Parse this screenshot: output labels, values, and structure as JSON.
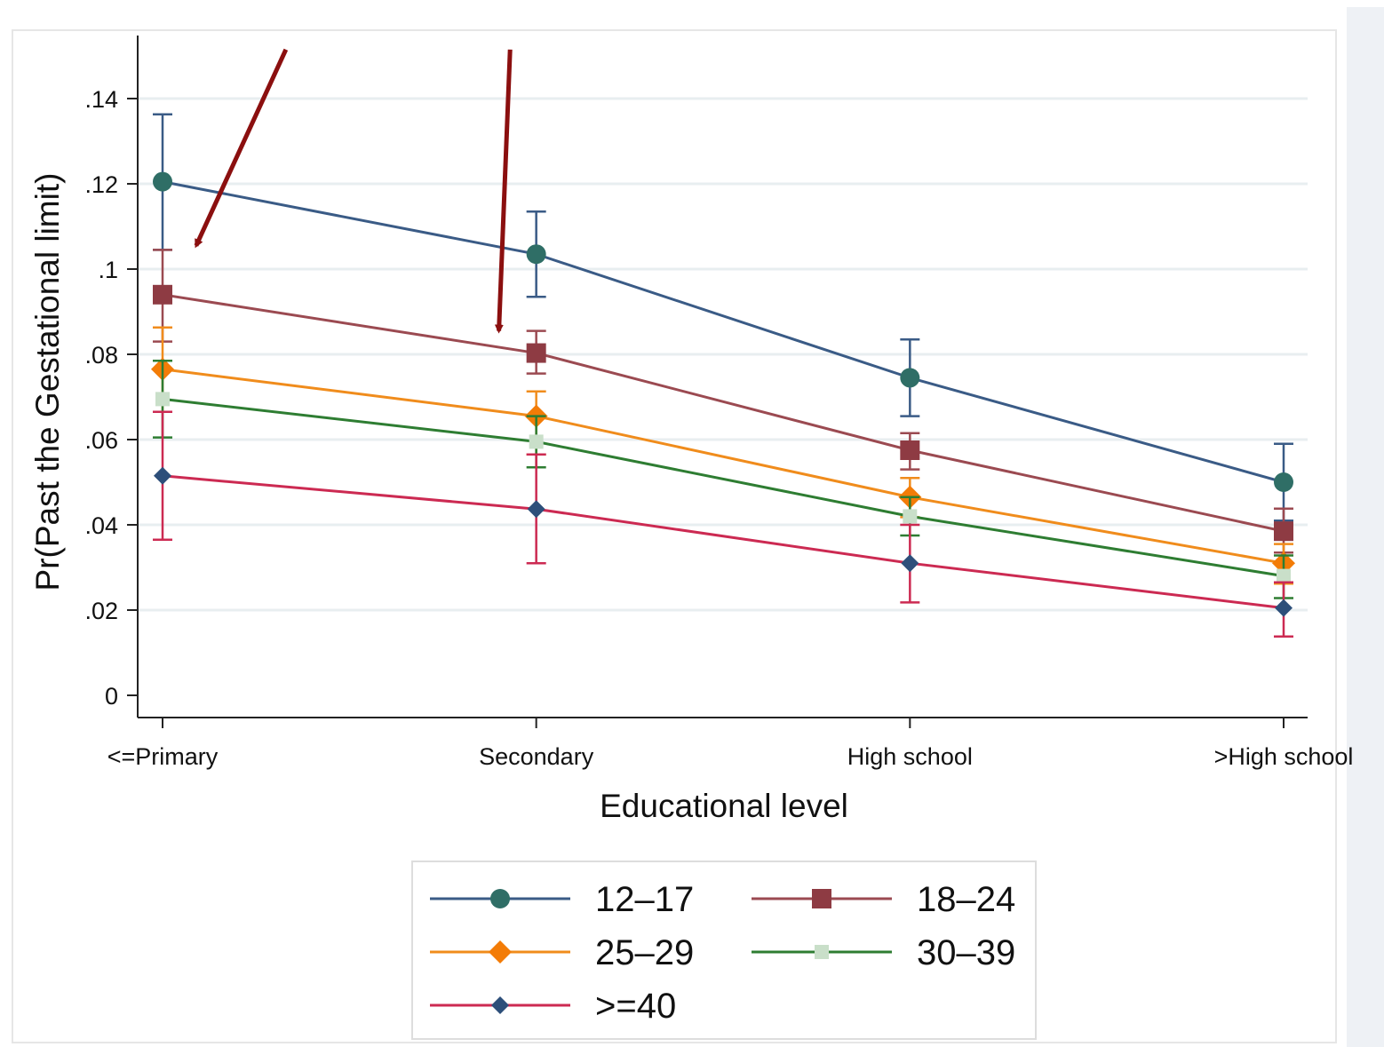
{
  "chart_data": {
    "type": "line",
    "title": "",
    "xlabel": "Educational level",
    "ylabel": "Pr(Past the Gestational limit)",
    "categories": [
      "<=Primary",
      "Secondary",
      "High school",
      ">High school"
    ],
    "ylim": [
      0,
      0.15
    ],
    "yticks": [
      0,
      0.02,
      0.04,
      0.06,
      0.08,
      0.1,
      0.12,
      0.14
    ],
    "ytick_labels": [
      "0",
      ".02",
      ".04",
      ".06",
      ".08",
      ".1",
      ".12",
      ".14"
    ],
    "grid": true,
    "legend_position": "bottom",
    "series": [
      {
        "name": "12–17",
        "color": "#3a5b86",
        "marker_color": "#2f6e66",
        "marker": "circle",
        "values": [
          0.1205,
          0.1035,
          0.0745,
          0.05
        ],
        "ci_low": [
          0.1045,
          0.0935,
          0.0655,
          0.041
        ],
        "ci_high": [
          0.1363,
          0.1135,
          0.0835,
          0.059
        ]
      },
      {
        "name": "18–24",
        "color": "#9b4a51",
        "marker_color": "#8e3b43",
        "marker": "square",
        "values": [
          0.094,
          0.0803,
          0.0575,
          0.0385
        ],
        "ci_low": [
          0.083,
          0.0755,
          0.053,
          0.0335
        ],
        "ci_high": [
          0.1045,
          0.0855,
          0.0615,
          0.0438
        ]
      },
      {
        "name": "25–29",
        "color": "#f08c1c",
        "marker_color": "#f37c07",
        "marker": "diamond",
        "values": [
          0.0765,
          0.0655,
          0.0465,
          0.031
        ],
        "ci_low": [
          0.0665,
          0.0565,
          0.0418,
          0.0262
        ],
        "ci_high": [
          0.0863,
          0.0713,
          0.051,
          0.0355
        ]
      },
      {
        "name": "30–39",
        "color": "#2e7d32",
        "marker_color": "#c9dfc9",
        "marker": "square-small",
        "values": [
          0.0695,
          0.0595,
          0.042,
          0.028
        ],
        "ci_low": [
          0.0605,
          0.0535,
          0.0375,
          0.0228
        ],
        "ci_high": [
          0.0785,
          0.0655,
          0.0465,
          0.0328
        ]
      },
      {
        "name": ">=40",
        "color": "#cc2a52",
        "marker_color": "#2d4f7a",
        "marker": "diamond-small",
        "values": [
          0.0515,
          0.0437,
          0.031,
          0.0205
        ],
        "ci_low": [
          0.0365,
          0.031,
          0.0218,
          0.0138
        ],
        "ci_high": [
          0.0665,
          0.0565,
          0.04,
          0.0265
        ]
      }
    ],
    "annotations": [
      {
        "type": "arrow",
        "color": "#8b0f0f",
        "from": {
          "category": 0.33,
          "y": 0.1515
        },
        "to": {
          "category": 0.09,
          "y": 0.1055
        }
      },
      {
        "type": "arrow",
        "color": "#8b0f0f",
        "from": {
          "category": 0.93,
          "y": 0.1515
        },
        "to": {
          "category": 0.9,
          "y": 0.0855
        }
      }
    ]
  }
}
